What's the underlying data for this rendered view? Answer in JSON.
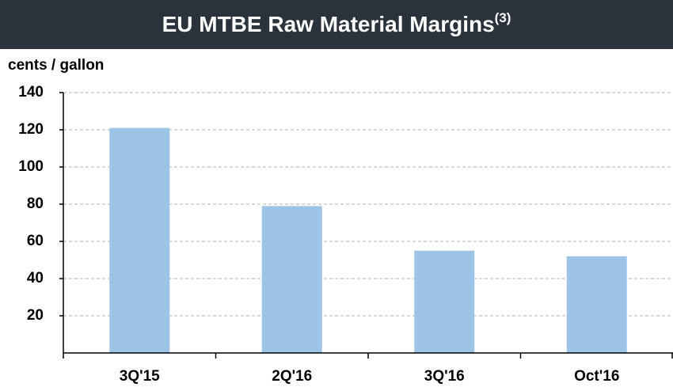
{
  "chart_data": {
    "type": "bar",
    "title": "EU MTBE Raw Material Margins",
    "title_note": "(3)",
    "y_label": "cents / gallon",
    "categories": [
      "3Q'15",
      "2Q'16",
      "3Q'16",
      "Oct'16"
    ],
    "values": [
      121,
      79,
      55,
      52
    ],
    "color": "#9dc3e6",
    "ylim": [
      0,
      140
    ],
    "yticks": [
      20,
      40,
      60,
      80,
      100,
      120,
      140
    ],
    "grid": true
  }
}
